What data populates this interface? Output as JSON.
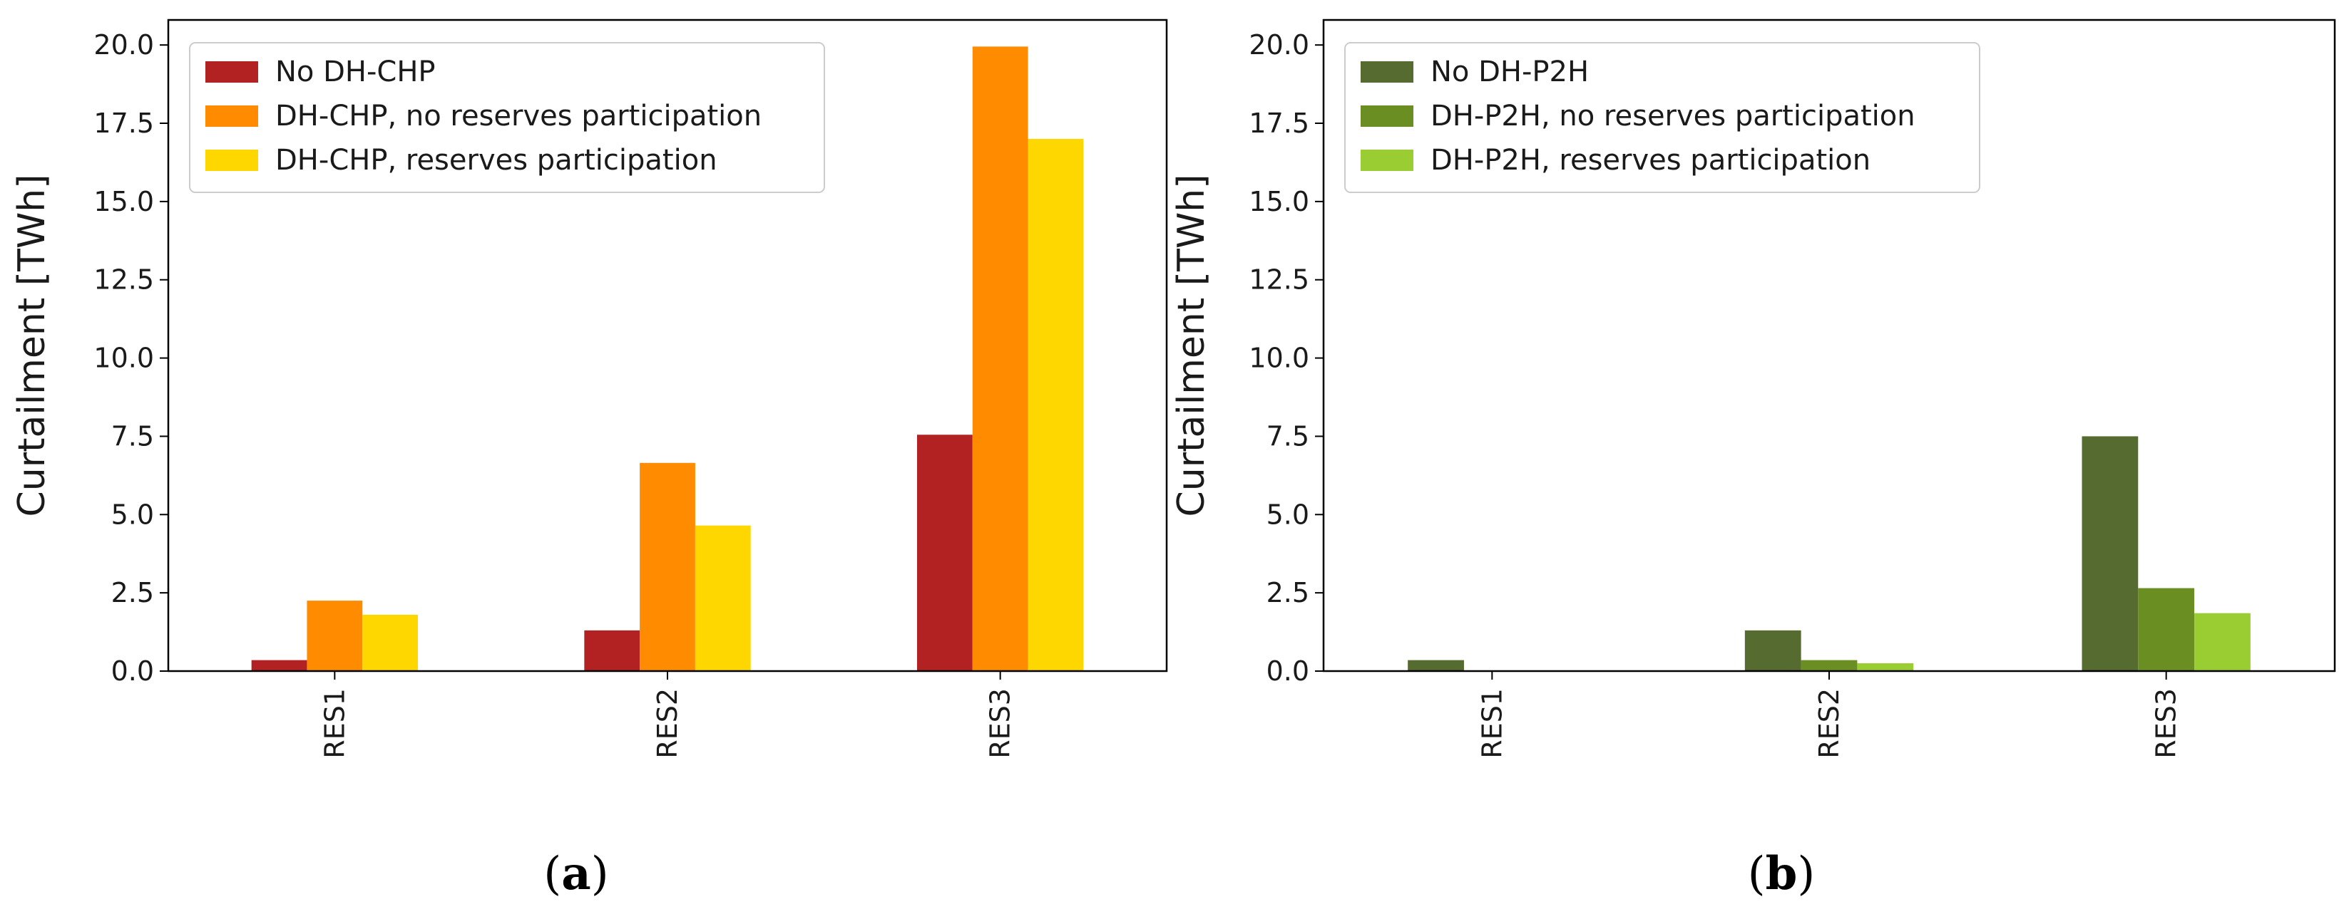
{
  "chart_data": [
    {
      "type": "bar",
      "panel": "a",
      "caption_open": "(",
      "caption_letter": "a",
      "caption_close": ")",
      "ylabel": "Curtailment [TWh]",
      "ylim": [
        0,
        20.8
      ],
      "yticks": [
        "0.0",
        "2.5",
        "5.0",
        "7.5",
        "10.0",
        "12.5",
        "15.0",
        "17.5",
        "20.0"
      ],
      "categories": [
        "RES1",
        "RES2",
        "RES3"
      ],
      "legend_position": "upper-left",
      "series": [
        {
          "name": "No DH-CHP",
          "color": "#b22222",
          "values": [
            0.35,
            1.3,
            7.55
          ]
        },
        {
          "name": "DH-CHP, no reserves participation",
          "color": "#ff8c00",
          "values": [
            2.25,
            6.65,
            19.95
          ]
        },
        {
          "name": "DH-CHP, reserves participation",
          "color": "#ffd700",
          "values": [
            1.8,
            4.65,
            17.0
          ]
        }
      ]
    },
    {
      "type": "bar",
      "panel": "b",
      "caption_open": "(",
      "caption_letter": "b",
      "caption_close": ")",
      "ylabel": "Curtailment [TWh]",
      "ylim": [
        0,
        20.8
      ],
      "yticks": [
        "0.0",
        "2.5",
        "5.0",
        "7.5",
        "10.0",
        "12.5",
        "15.0",
        "17.5",
        "20.0"
      ],
      "categories": [
        "RES1",
        "RES2",
        "RES3"
      ],
      "legend_position": "upper-left",
      "series": [
        {
          "name": "No DH-P2H",
          "color": "#556b2f",
          "values": [
            0.35,
            1.3,
            7.5
          ]
        },
        {
          "name": "DH-P2H, no reserves participation",
          "color": "#6b8e23",
          "values": [
            0.0,
            0.35,
            2.65
          ]
        },
        {
          "name": "DH-P2H, reserves participation",
          "color": "#9acd32",
          "values": [
            0.0,
            0.25,
            1.85
          ]
        }
      ]
    }
  ]
}
